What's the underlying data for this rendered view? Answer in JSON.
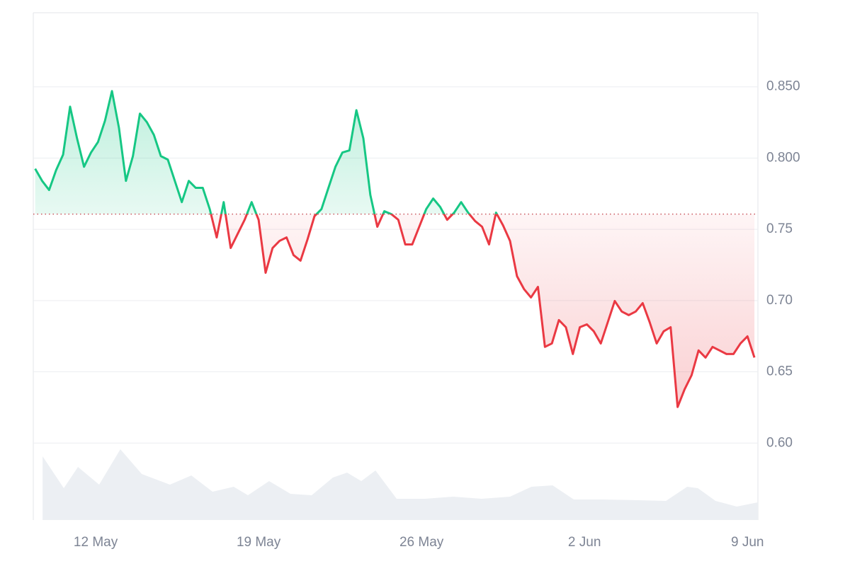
{
  "chart_data": {
    "type": "line",
    "x": [
      9.4,
      9.7,
      10,
      10.3,
      10.6,
      10.9,
      11.2,
      11.5,
      11.8,
      12.1,
      12.4,
      12.7,
      13,
      13.3,
      13.6,
      13.9,
      14.2,
      14.5,
      14.8,
      15.1,
      15.4,
      15.7,
      16,
      16.3,
      16.6,
      16.9,
      17.2,
      17.5,
      17.8,
      18.1,
      18.4,
      18.7,
      19,
      19.3,
      19.6,
      19.9,
      20.2,
      20.5,
      20.8,
      21.1,
      21.4,
      21.7,
      22,
      22.3,
      22.6,
      22.9,
      23.2,
      23.5,
      23.8,
      24.1,
      24.4,
      24.7,
      25,
      25.3,
      25.6,
      25.9,
      26.2,
      26.5,
      26.8,
      27.1,
      27.4,
      27.7,
      28,
      28.3,
      28.6,
      28.9,
      29.2,
      29.5,
      29.8,
      30.1,
      30.4,
      30.7,
      31,
      31.3,
      31.6,
      31.9,
      32.2,
      32.5,
      32.8,
      33.1,
      33.4,
      33.7,
      34,
      34.3,
      34.6,
      34.9,
      35.2,
      35.5,
      35.8,
      36.1,
      36.4,
      36.7,
      37,
      37.3,
      37.6,
      37.9,
      38.2,
      38.5,
      38.8,
      39.1,
      39.4,
      39.7,
      40,
      40.3
    ],
    "values": [
      0.7925,
      0.784,
      0.7776,
      0.7915,
      0.8024,
      0.8361,
      0.8138,
      0.7939,
      0.8039,
      0.8113,
      0.8262,
      0.847,
      0.8212,
      0.784,
      0.8014,
      0.8312,
      0.8252,
      0.8163,
      0.8014,
      0.7989,
      0.784,
      0.7691,
      0.784,
      0.7791,
      0.7791,
      0.7642,
      0.7443,
      0.7691,
      0.7369,
      0.7468,
      0.7567,
      0.7691,
      0.7567,
      0.7195,
      0.7369,
      0.7419,
      0.7443,
      0.7319,
      0.728,
      0.7429,
      0.7592,
      0.7642,
      0.7791,
      0.7939,
      0.8039,
      0.8054,
      0.8336,
      0.8138,
      0.7741,
      0.7518,
      0.7627,
      0.7607,
      0.7567,
      0.7394,
      0.7394,
      0.7518,
      0.7642,
      0.7716,
      0.7657,
      0.7567,
      0.7617,
      0.7691,
      0.7617,
      0.7558,
      0.7518,
      0.7394,
      0.7617,
      0.7528,
      0.7419,
      0.7171,
      0.7081,
      0.7022,
      0.7096,
      0.6675,
      0.6699,
      0.6863,
      0.6813,
      0.6625,
      0.6813,
      0.6833,
      0.6784,
      0.6699,
      0.6848,
      0.6997,
      0.6923,
      0.6898,
      0.6923,
      0.6982,
      0.6848,
      0.6699,
      0.6784,
      0.6813,
      0.6253,
      0.6377,
      0.6476,
      0.665,
      0.66,
      0.6675,
      0.665,
      0.6625,
      0.6625,
      0.6699,
      0.6749,
      0.66
    ],
    "baseline": 0.7607,
    "color_up": "#16c784",
    "color_down": "#ea3943",
    "xlim": [
      9.32,
      40.45
    ],
    "ylim": [
      0.546,
      0.902
    ],
    "xticks": [
      {
        "value": 12,
        "label": "12 May"
      },
      {
        "value": 19,
        "label": "19 May"
      },
      {
        "value": 26,
        "label": "26 May"
      },
      {
        "value": 33,
        "label": "2 Jun"
      },
      {
        "value": 40,
        "label": "9 Jun"
      }
    ],
    "yticks": [
      {
        "value": 0.85,
        "label": "0.850"
      },
      {
        "value": 0.8,
        "label": "0.800"
      },
      0.75,
      {
        "value": 0.7,
        "label": "0.70"
      },
      0.65,
      {
        "value": 0.6,
        "label": "0.60"
      }
    ],
    "grid": true,
    "volume": {
      "x": [
        9.72,
        10.63,
        11.24,
        12.15,
        13.06,
        13.98,
        15.19,
        16.11,
        17.02,
        17.93,
        18.54,
        19.45,
        20.37,
        21.28,
        22.19,
        22.8,
        23.41,
        24.02,
        24.93,
        26.15,
        27.36,
        28.58,
        29.8,
        30.72,
        31.63,
        32.54,
        33.76,
        35.29,
        36.5,
        37.41,
        37.87,
        38.63,
        39.54,
        40.45
      ],
      "values": [
        90,
        45,
        75,
        50,
        100,
        65,
        50,
        63,
        40,
        47,
        35,
        55,
        37,
        35,
        60,
        67,
        55,
        70,
        30,
        30,
        33,
        30,
        33,
        47,
        49,
        29,
        29,
        28,
        27,
        47,
        45,
        27,
        19,
        25
      ],
      "ylim": [
        0,
        100
      ],
      "color": "#eceff3"
    }
  }
}
